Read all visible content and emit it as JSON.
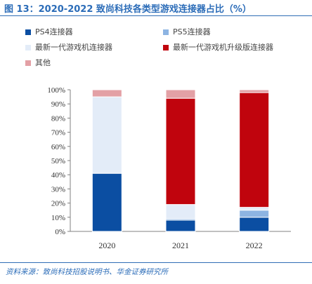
{
  "header": {
    "title": "图 13：2020-2022 致尚科技各类型游戏连接器占比（%）"
  },
  "footer": {
    "source": "资料来源：致尚科技招股说明书、华金证券研究所"
  },
  "chart_data": {
    "type": "bar",
    "stacked": true,
    "categories": [
      "2020",
      "2021",
      "2022"
    ],
    "series": [
      {
        "name": "PS4连接器",
        "color": "#0b4ea2",
        "values": [
          41,
          8,
          10
        ]
      },
      {
        "name": "PS5连接器",
        "color": "#8db4e2",
        "values": [
          0,
          1,
          5
        ]
      },
      {
        "name": "最新一代游戏机连接器",
        "color": "#e3ecf8",
        "values": [
          54,
          10,
          2
        ]
      },
      {
        "name": "最新一代游戏机升级版连接器",
        "color": "#c0040d",
        "values": [
          0,
          75,
          81
        ]
      },
      {
        "name": "其他",
        "color": "#e3a0a5",
        "values": [
          5,
          6,
          2
        ]
      }
    ],
    "yticks": [
      "0%",
      "10%",
      "20%",
      "30%",
      "40%",
      "50%",
      "60%",
      "70%",
      "80%",
      "90%",
      "100%"
    ],
    "ylim": [
      0,
      100
    ],
    "grid": false,
    "legend_position": "top"
  }
}
